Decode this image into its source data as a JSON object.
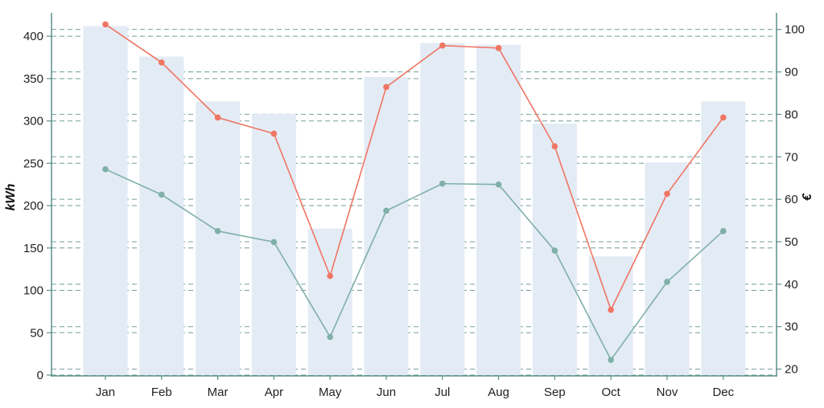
{
  "chart_data": {
    "type": "bar",
    "categories": [
      "Jan",
      "Feb",
      "Mar",
      "Apr",
      "May",
      "Jun",
      "Jul",
      "Aug",
      "Sep",
      "Oct",
      "Nov",
      "Dec"
    ],
    "bars": {
      "axis": "left",
      "values": [
        412,
        376,
        323,
        308,
        173,
        352,
        392,
        390,
        297,
        140,
        251,
        323
      ]
    },
    "series": [
      {
        "axis": "left",
        "type": "line",
        "color": "#f07563",
        "values": [
          414,
          369,
          304,
          285,
          117,
          340,
          389,
          386,
          270,
          77,
          214,
          304
        ]
      },
      {
        "axis": "left",
        "type": "line",
        "color": "#7fb0a8",
        "values": [
          243,
          213,
          170,
          157,
          45,
          194,
          226,
          225,
          147,
          18,
          110,
          170
        ]
      }
    ],
    "ylabel": "kWh",
    "ylim": [
      0,
      420
    ],
    "yticks": [
      0,
      50,
      100,
      150,
      200,
      250,
      300,
      350,
      400
    ],
    "y2label": "€",
    "y2lim": [
      18.6,
      102.4
    ],
    "y2ticks": [
      20,
      30,
      40,
      50,
      60,
      70,
      80,
      90,
      100
    ],
    "grid": true,
    "colors": {
      "bar": "#e3ebf5",
      "axis": "#5b8f88",
      "grid": "#5b8f88",
      "line_primary": "#f07563",
      "line_secondary": "#7fb0a8"
    }
  }
}
